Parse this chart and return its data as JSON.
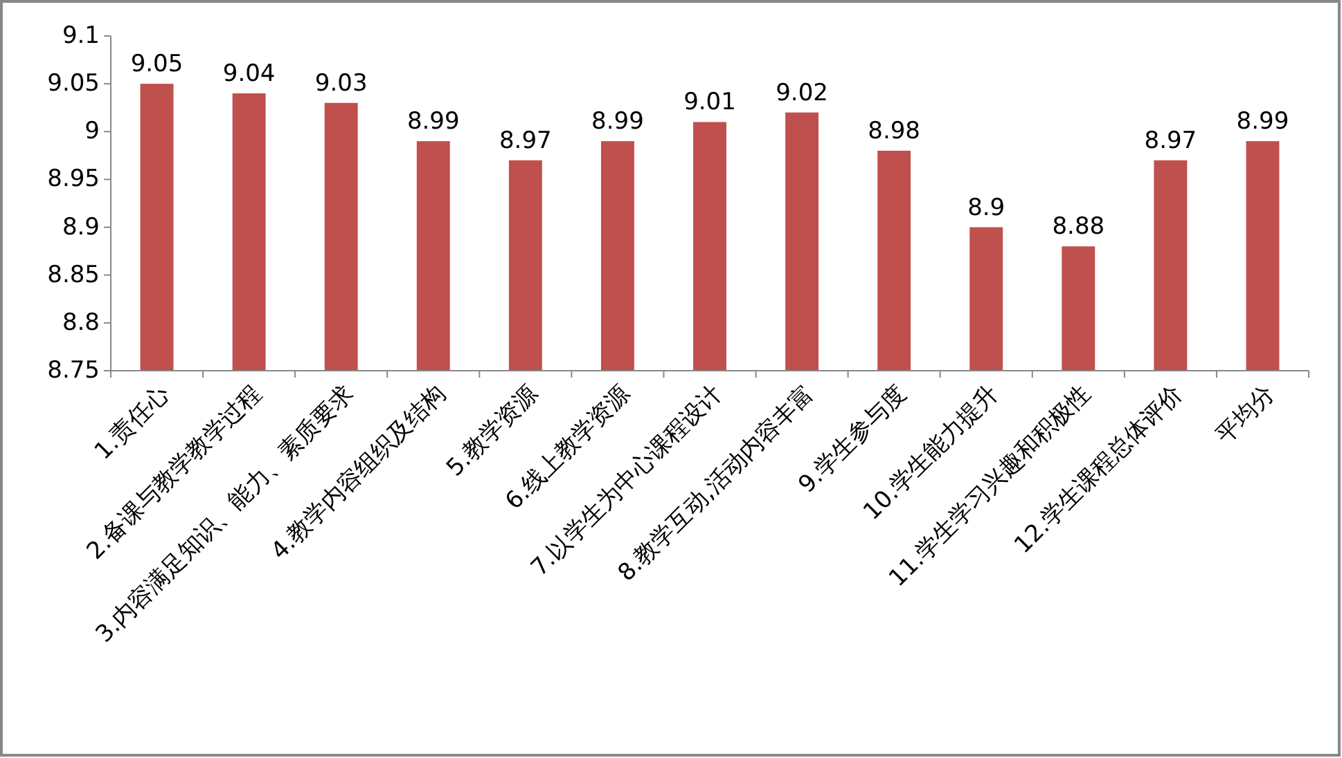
{
  "chart_data": {
    "type": "bar",
    "categories": [
      "1.责任心",
      "2.备课与教学教学过程",
      "3.内容满足知识、能力、素质要求",
      "4.教学内容组织及结构",
      "5.教学资源",
      "6.线上教学资源",
      "7.以学生为中心课程设计",
      "8.教学互动,活动内容丰富",
      "9.学生参与度",
      "10.学生能力提升",
      "11.学生学习兴趣和积极性",
      "12.学生课程总体评价",
      "平均分"
    ],
    "values": [
      9.05,
      9.04,
      9.03,
      8.99,
      8.97,
      8.99,
      9.01,
      9.02,
      8.98,
      8.9,
      8.88,
      8.97,
      8.99
    ],
    "color": "#c0504d",
    "ylim": [
      8.75,
      9.1
    ],
    "yticks": [
      8.75,
      8.8,
      8.85,
      8.9,
      8.95,
      9,
      9.05,
      9.1
    ],
    "data_labels": true
  }
}
